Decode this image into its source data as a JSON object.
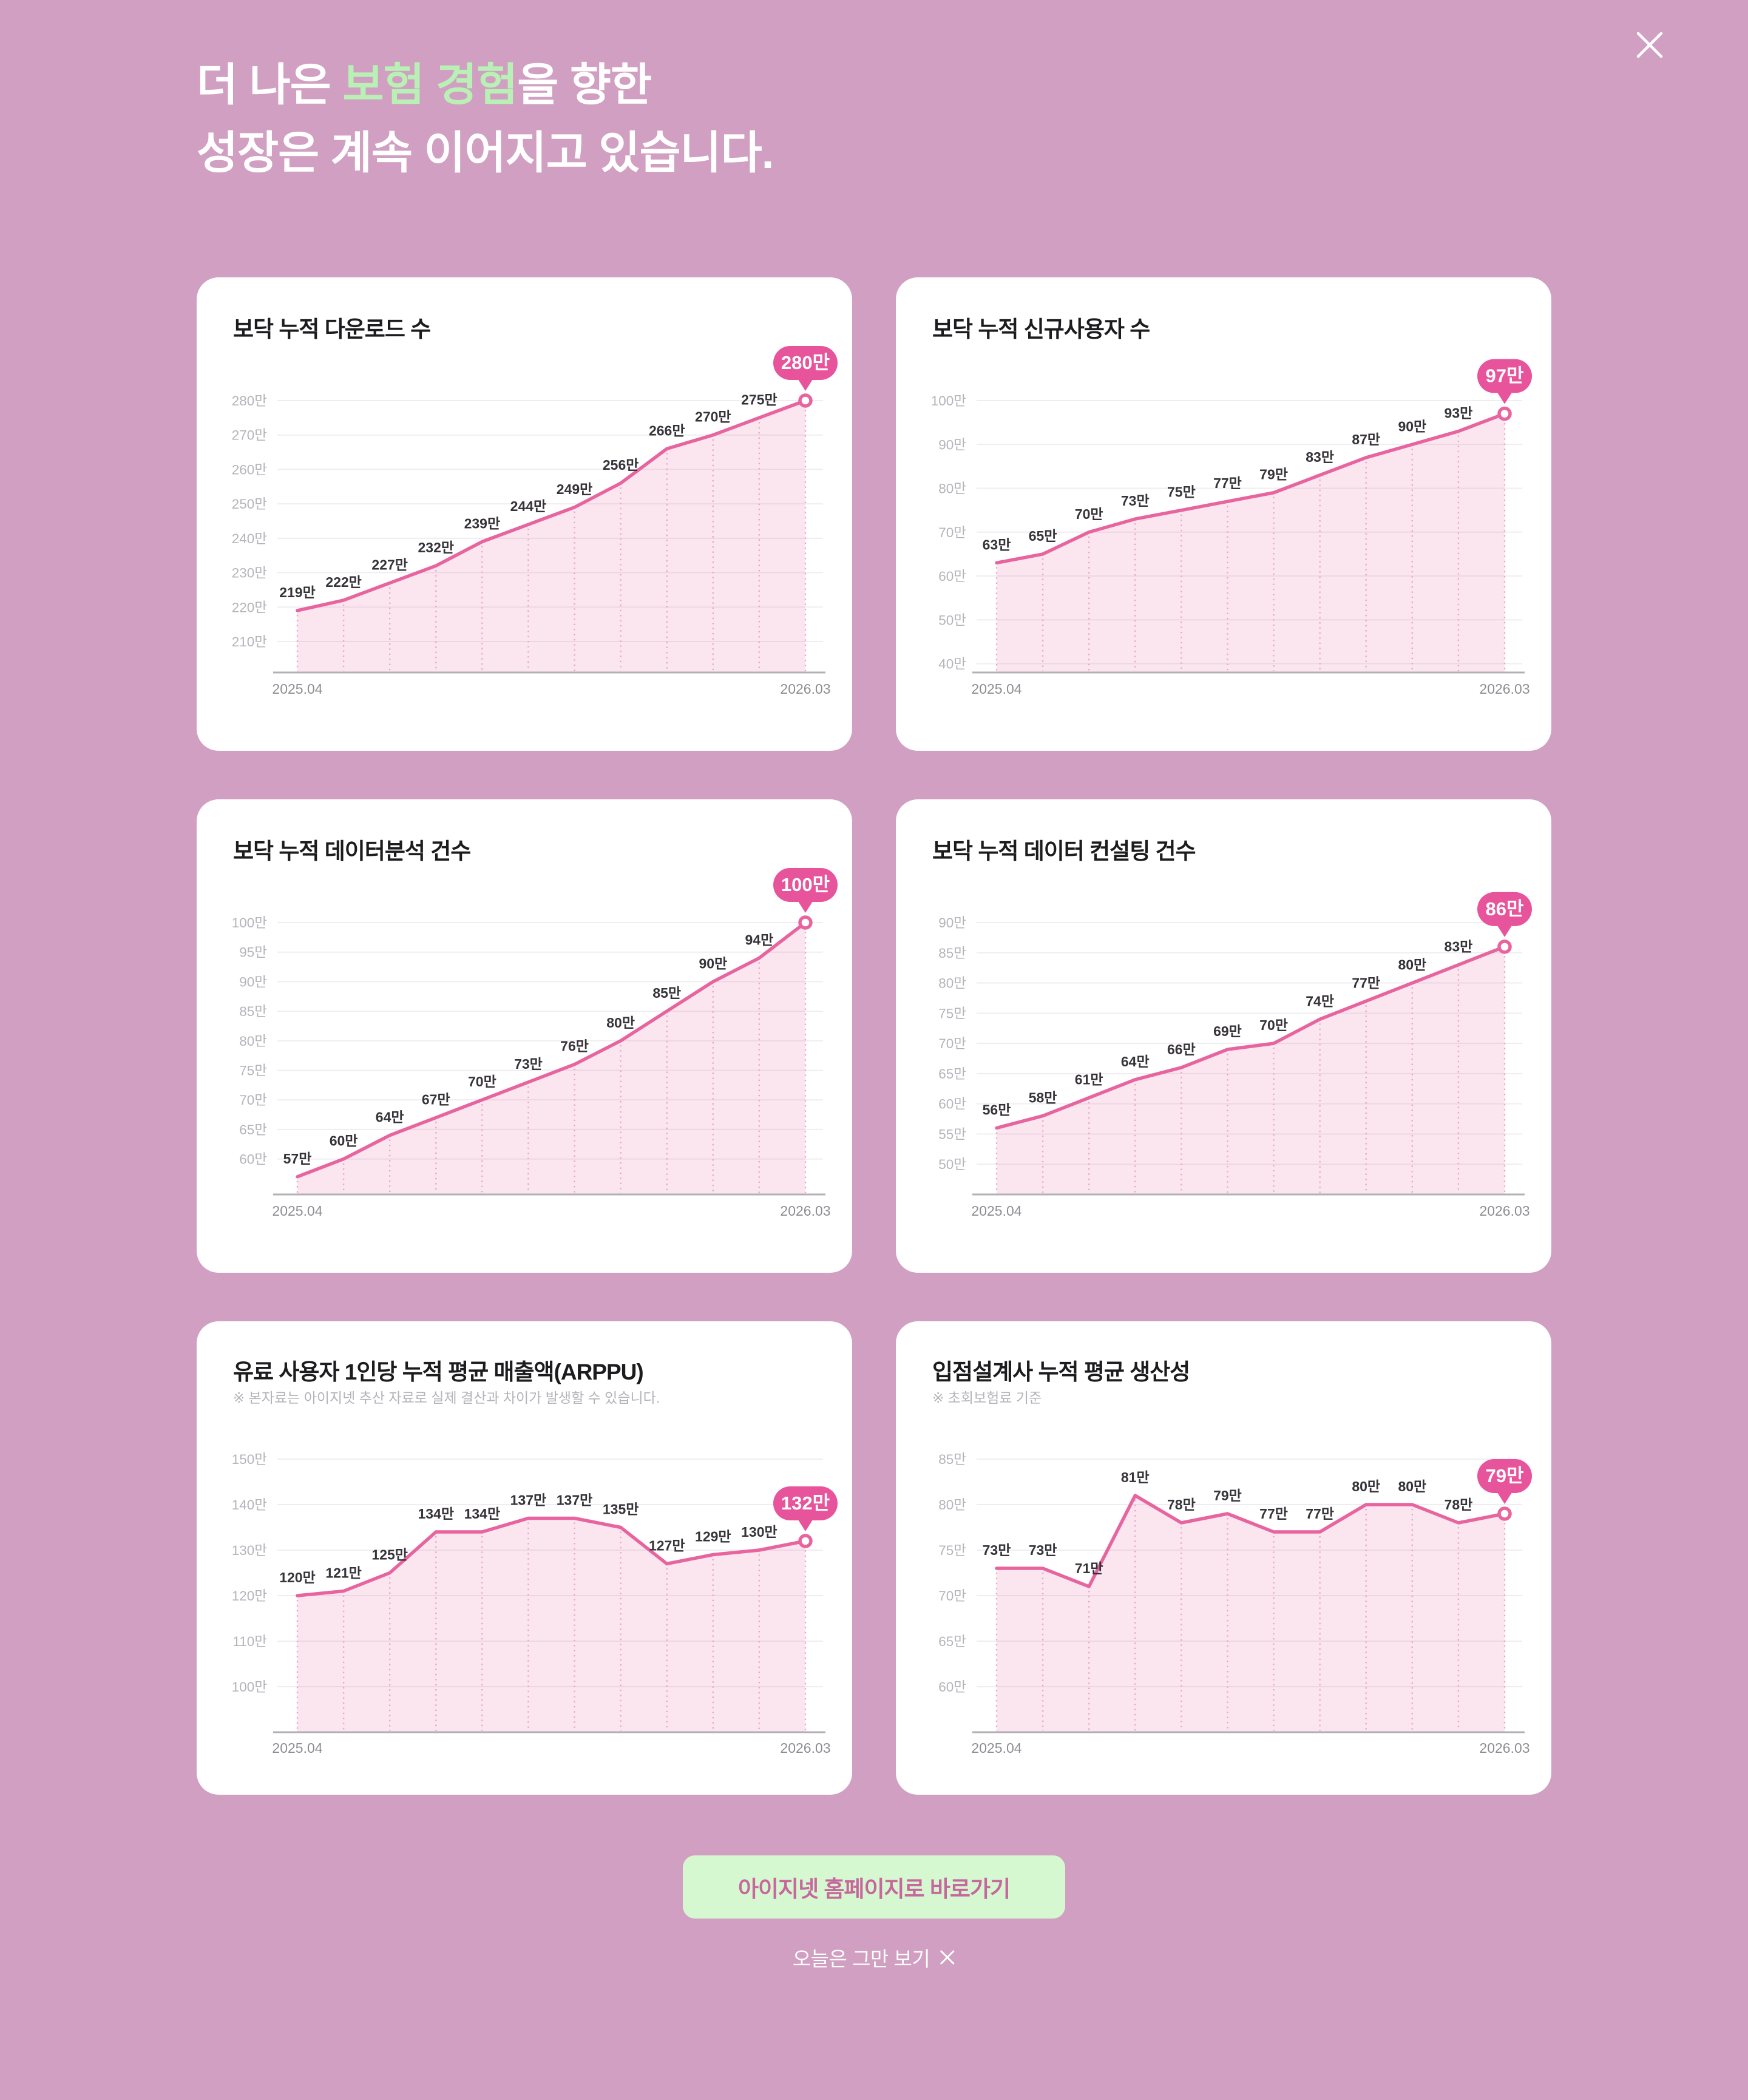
{
  "header": {
    "line1_pre": "더 나은 ",
    "line1_highlight": "보험 경험",
    "line1_post": "을 향한",
    "line2": "성장은 계속 이어지고 있습니다."
  },
  "footer": {
    "cta_label": "아이지넷 홈페이지로 바로가기",
    "dismiss_label": "오늘은 그만 보기"
  },
  "colors": {
    "background": "#d19fc1",
    "card": "#ffffff",
    "pink_accent": "#e7549b",
    "line": "#e8649f",
    "dotted": "#e9a8c9",
    "grid": "#efedf0",
    "axis": "#b2b0b6",
    "y_tick_text": "#b6b3ba",
    "x_tick_text": "#8f8d93",
    "data_label_text": "#363339",
    "highlight_green": "#b9f0b5",
    "button_bg": "#d6f8d1",
    "button_text": "#c7679d"
  },
  "chart_data": [
    {
      "type": "area",
      "title": "보닥 누적 다운로드 수",
      "subtitle": null,
      "badge": "280만",
      "unit": "만",
      "values": [
        219,
        222,
        227,
        232,
        239,
        244,
        249,
        256,
        266,
        270,
        275,
        280
      ],
      "yticks": [
        210,
        220,
        230,
        240,
        250,
        260,
        270,
        280
      ],
      "ylim": [
        201,
        280
      ],
      "x_axis": {
        "start_label": "2025.04",
        "end_label": "2026.03",
        "points": 12
      },
      "grid": true,
      "legend": "none"
    },
    {
      "type": "area",
      "title": "보닥 누적 신규사용자 수",
      "subtitle": null,
      "badge": "97만",
      "unit": "만",
      "values": [
        63,
        65,
        70,
        73,
        75,
        77,
        79,
        83,
        87,
        90,
        93,
        97
      ],
      "yticks": [
        40,
        50,
        60,
        70,
        80,
        90,
        100
      ],
      "ylim": [
        38,
        100
      ],
      "x_axis": {
        "start_label": "2025.04",
        "end_label": "2026.03",
        "points": 12
      },
      "grid": true,
      "legend": "none"
    },
    {
      "type": "area",
      "title": "보닥 누적 데이터분석 건수",
      "subtitle": null,
      "badge": "100만",
      "unit": "만",
      "values": [
        57,
        60,
        64,
        67,
        70,
        73,
        76,
        80,
        85,
        90,
        94,
        100
      ],
      "yticks": [
        60,
        65,
        70,
        75,
        80,
        85,
        90,
        95,
        100
      ],
      "ylim": [
        54,
        100
      ],
      "x_axis": {
        "start_label": "2025.04",
        "end_label": "2026.03",
        "points": 12
      },
      "grid": true,
      "legend": "none"
    },
    {
      "type": "area",
      "title": "보닥 누적 데이터 컨설팅 건수",
      "subtitle": null,
      "badge": "86만",
      "unit": "만",
      "values": [
        56,
        58,
        61,
        64,
        66,
        69,
        70,
        74,
        77,
        80,
        83,
        86
      ],
      "yticks": [
        50,
        55,
        60,
        65,
        70,
        75,
        80,
        85,
        90
      ],
      "ylim": [
        45,
        90
      ],
      "x_axis": {
        "start_label": "2025.04",
        "end_label": "2026.03",
        "points": 12
      },
      "grid": true,
      "legend": "none"
    },
    {
      "type": "area",
      "title": "유료 사용자 1인당 누적 평균 매출액(ARPPU)",
      "subtitle": "※ 본자료는 아이지넷 추산 자료로 실제 결산과 차이가 발생할 수 있습니다.",
      "badge": "132만",
      "unit": "만",
      "values": [
        120,
        121,
        125,
        134,
        134,
        137,
        137,
        135,
        127,
        129,
        130,
        132
      ],
      "yticks": [
        100,
        110,
        120,
        130,
        140,
        150
      ],
      "ylim": [
        90,
        150
      ],
      "x_axis": {
        "start_label": "2025.04",
        "end_label": "2026.03",
        "points": 12
      },
      "grid": true,
      "legend": "none"
    },
    {
      "type": "area",
      "title": "입점설계사 누적 평균 생산성",
      "subtitle": "※ 초회보험료 기준",
      "badge": "79만",
      "unit": "만",
      "values": [
        73,
        73,
        71,
        81,
        78,
        79,
        77,
        77,
        80,
        80,
        78,
        79
      ],
      "yticks": [
        60,
        65,
        70,
        75,
        80,
        85
      ],
      "ylim": [
        55,
        85
      ],
      "x_axis": {
        "start_label": "2025.04",
        "end_label": "2026.03",
        "points": 12
      },
      "grid": true,
      "legend": "none"
    }
  ]
}
